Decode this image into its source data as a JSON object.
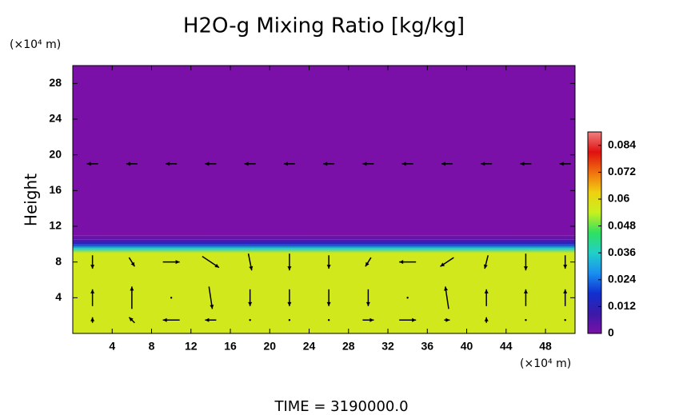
{
  "chart_data": {
    "type": "contour",
    "title": "H2O-g Mixing Ratio [kg/kg]",
    "y_label": "Height",
    "y_unit": "(×10⁴ m)",
    "x_unit": "(×10⁴ m)",
    "footer": "TIME = 3190000.0",
    "xlim": [
      0,
      51
    ],
    "xticks": [
      4,
      8,
      12,
      16,
      20,
      24,
      28,
      32,
      36,
      40,
      44,
      48
    ],
    "ylim": [
      0,
      30
    ],
    "yticks": [
      4,
      8,
      12,
      16,
      20,
      24,
      28
    ],
    "clim": [
      0,
      0.09
    ],
    "cticks": [
      0,
      0.012,
      0.024,
      0.036,
      0.048,
      0.06,
      0.072,
      0.084
    ],
    "colormap": [
      "#7a10a8",
      "#3a1aa8",
      "#1030d0",
      "#1a90f0",
      "#20d0c8",
      "#30e060",
      "#c8f020",
      "#f0d010",
      "#f07010",
      "#e01010",
      "#f08080"
    ],
    "heights": [
      0,
      9,
      9.5,
      10,
      10.5,
      11,
      30
    ],
    "profile": [
      0.056,
      0.056,
      0.036,
      0.015,
      0.005,
      0,
      0
    ],
    "vectors": {
      "x": [
        2,
        6,
        10,
        14,
        18,
        22,
        26,
        30,
        34,
        38,
        42,
        46,
        50,
        2,
        6,
        10,
        14,
        18,
        22,
        26,
        30,
        34,
        38,
        42,
        46,
        50,
        2,
        6,
        10,
        14,
        18,
        22,
        26,
        30,
        34,
        38,
        42,
        46,
        50,
        2,
        6,
        10,
        14,
        18,
        22,
        26,
        30,
        34,
        38,
        42,
        46,
        50
      ],
      "y": [
        8,
        8,
        8,
        8,
        8,
        8,
        8,
        8,
        8,
        8,
        8,
        8,
        8,
        4,
        4,
        4,
        4,
        4,
        4,
        4,
        4,
        4,
        4,
        4,
        4,
        4,
        1.5,
        1.5,
        1.5,
        1.5,
        1.5,
        1.5,
        1.5,
        1.5,
        1.5,
        1.5,
        1.5,
        1.5,
        1.5,
        19,
        19,
        19,
        19,
        19,
        19,
        19,
        19,
        19,
        19,
        19,
        19,
        19
      ],
      "u": [
        0,
        0.5,
        1.5,
        1.5,
        0.3,
        0,
        0,
        -0.5,
        -1.5,
        -1.2,
        -0.3,
        0,
        0,
        0,
        0,
        0,
        0.3,
        0,
        0,
        0,
        0,
        0,
        -0.3,
        0,
        0,
        0,
        0,
        -0.5,
        -1.5,
        -1,
        0,
        0,
        0,
        1,
        1.5,
        0.5,
        0,
        0,
        0,
        -1,
        -1,
        -1,
        -1,
        -1,
        -1,
        -1,
        -1,
        -1,
        -1,
        -1,
        -1,
        -1
      ],
      "v": [
        -1.2,
        -0.8,
        0,
        -1,
        -1.5,
        -1.5,
        -1.2,
        -0.8,
        0,
        -0.8,
        -1.2,
        -1.5,
        -1.2,
        1.5,
        2,
        0,
        -2,
        -1.5,
        -1.5,
        -1.5,
        -1.5,
        0,
        2,
        1.5,
        1.5,
        1.5,
        0.5,
        0.5,
        0,
        0,
        0,
        0,
        0,
        0,
        0,
        0,
        0.5,
        0,
        0,
        0,
        0,
        0,
        0,
        0,
        0,
        0,
        0,
        0,
        0,
        0,
        0,
        0
      ]
    }
  }
}
